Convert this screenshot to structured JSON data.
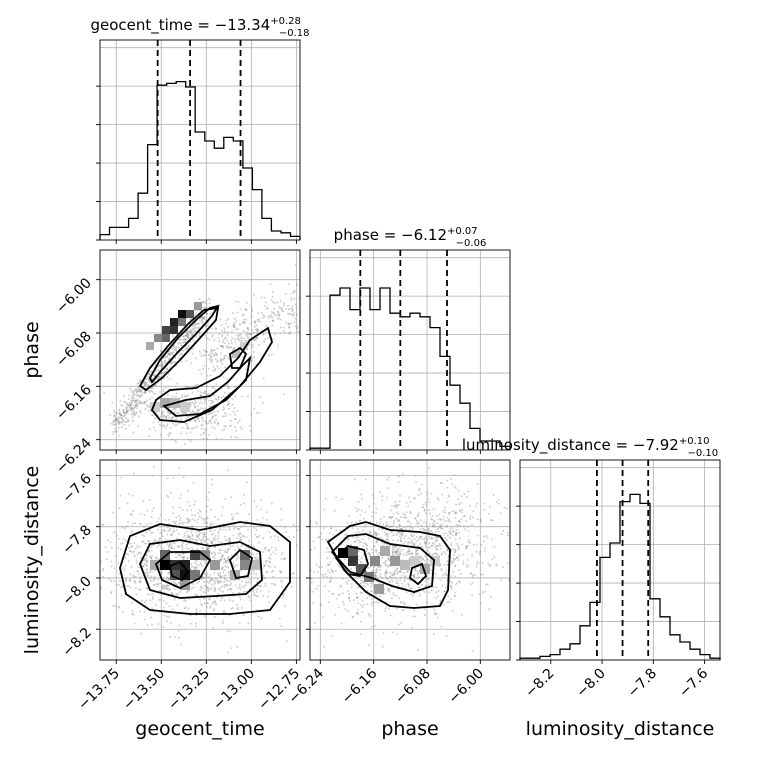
{
  "chart_data": {
    "type": "corner",
    "params": [
      {
        "name": "geocent_time",
        "axis_label": "geocent_time",
        "range": [
          -13.84,
          -12.73
        ],
        "ticks": [
          -13.75,
          -13.5,
          -13.25,
          -13.0,
          -12.75
        ],
        "tick_labels": [
          "−13.75",
          "−13.50",
          "−13.25",
          "−13.00",
          "−12.75"
        ],
        "title_main": "geocent_time = −13.34",
        "title_sup": "+0.28",
        "title_sub": "−0.18",
        "quantiles": [
          -13.52,
          -13.34,
          -13.06
        ],
        "hist": [
          0.03,
          0.07,
          0.07,
          0.12,
          0.26,
          0.53,
          0.86,
          0.87,
          0.88,
          0.85,
          0.6,
          0.55,
          0.51,
          0.57,
          0.55,
          0.4,
          0.28,
          0.12,
          0.05,
          0.04,
          0.02
        ]
      },
      {
        "name": "phase",
        "axis_label": "phase",
        "range": [
          -6.2555,
          -5.9555
        ],
        "ticks": [
          -6.24,
          -6.16,
          -6.08,
          -6.0
        ],
        "tick_labels": [
          "−6.24",
          "−6.16",
          "−6.08",
          "−6.00"
        ],
        "title_main": "phase = −6.12",
        "title_sup": "+0.07",
        "title_sub": "−0.06",
        "quantiles": [
          -6.18,
          -6.12,
          -6.05
        ],
        "hist": [
          0.01,
          0.01,
          0.86,
          0.9,
          0.78,
          0.9,
          0.78,
          0.9,
          0.76,
          0.74,
          0.76,
          0.74,
          0.68,
          0.52,
          0.36,
          0.26,
          0.12,
          0.05,
          0.05,
          0.02
        ]
      },
      {
        "name": "luminosity_distance",
        "axis_label": "luminosity_distance",
        "range": [
          -8.32,
          -7.54
        ],
        "ticks": [
          -8.2,
          -8.0,
          -7.8,
          -7.6
        ],
        "tick_labels": [
          "−8.2",
          "−8.0",
          "−7.8",
          "−7.6"
        ],
        "title_main": "luminosity_distance = −7.92",
        "title_sup": "+0.10",
        "title_sub": "−0.10",
        "quantiles": [
          -8.02,
          -7.92,
          -7.82
        ],
        "hist": [
          0.01,
          0.01,
          0.02,
          0.03,
          0.06,
          0.09,
          0.19,
          0.32,
          0.57,
          0.65,
          0.88,
          0.92,
          0.87,
          0.34,
          0.24,
          0.14,
          0.1,
          0.06,
          0.03,
          0.01
        ]
      }
    ],
    "pair_plots": [
      {
        "x": "geocent_time",
        "y": "phase",
        "contour_levels": 3
      },
      {
        "x": "geocent_time",
        "y": "luminosity_distance",
        "contour_levels": 3
      },
      {
        "x": "phase",
        "y": "luminosity_distance",
        "contour_levels": 3
      }
    ]
  }
}
